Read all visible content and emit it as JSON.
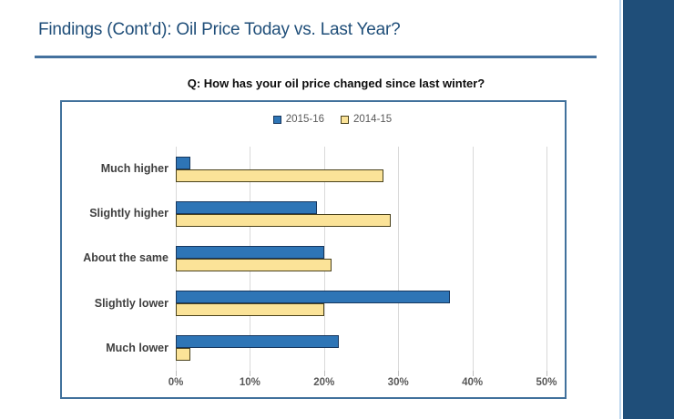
{
  "slide": {
    "title": "Findings (Cont’d): Oil Price Today vs. Last Year?",
    "title_color": "#1F4E79",
    "underline_color": "#44719E",
    "accent_bar_color": "#1F4E79",
    "accent_light_line_color": "#BDD7EE"
  },
  "chart_data": {
    "type": "bar",
    "orientation": "horizontal",
    "title": "Q: How has your oil price changed since last winter?",
    "categories": [
      "Much higher",
      "Slightly higher",
      "About the same",
      "Slightly lower",
      "Much lower"
    ],
    "series": [
      {
        "name": "2015-16",
        "values": [
          2,
          19,
          20,
          37,
          22
        ],
        "fill": "#2E75B6",
        "border": "#17375E"
      },
      {
        "name": "2014-15",
        "values": [
          28,
          29,
          21,
          20,
          2
        ],
        "fill": "#FBE398",
        "border": "#4A421C"
      }
    ],
    "xlim": [
      0,
      50
    ],
    "x_tick_values": [
      0,
      10,
      20,
      30,
      40,
      50
    ],
    "x_ticks": [
      "0%",
      "10%",
      "20%",
      "30%",
      "40%",
      "50%"
    ],
    "grid": true,
    "grid_color": "#D9D9D9",
    "legend_position": "top-center",
    "frame_border_color": "#41719C"
  }
}
